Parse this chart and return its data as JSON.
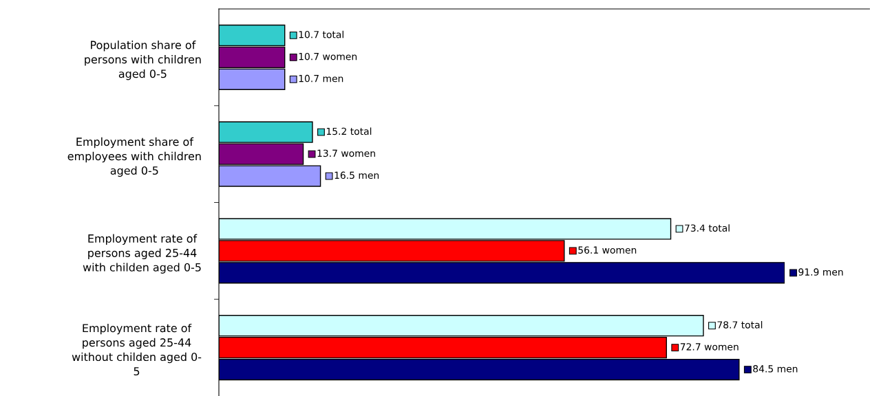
{
  "chart_data": {
    "type": "bar",
    "orientation": "horizontal",
    "grid": false,
    "legend": false,
    "categories": [
      "Population share of\npersons with children\naged 0-5",
      "Employment share of\nemployees with children\naged 0-5",
      "Employment rate of\npersons aged 25-44\nwith childen aged 0-5",
      "Employment rate of\npersons aged 25-44\nwithout childen aged 0-\n5"
    ],
    "series": [
      {
        "colors": [
          "#33cccc",
          "#33cccc",
          "#ccffff",
          "#ccffff"
        ],
        "values": [
          10.7,
          15.2,
          73.4,
          78.7
        ],
        "value_labels": [
          "10.7 total",
          "15.2 total",
          "73.4 total",
          "78.7 total"
        ]
      },
      {
        "colors": [
          "#800080",
          "#800080",
          "#ff0000",
          "#ff0000"
        ],
        "values": [
          10.7,
          13.7,
          56.1,
          72.7
        ],
        "value_labels": [
          "10.7 women",
          "13.7 women",
          "56.1 women",
          "72.7 women"
        ]
      },
      {
        "colors": [
          "#9999ff",
          "#9999ff",
          "#000080",
          "#000080"
        ],
        "values": [
          10.7,
          16.5,
          91.9,
          84.5
        ],
        "value_labels": [
          "10.7 men",
          "16.5 men",
          "91.9 men",
          "84.5 men"
        ]
      }
    ]
  }
}
